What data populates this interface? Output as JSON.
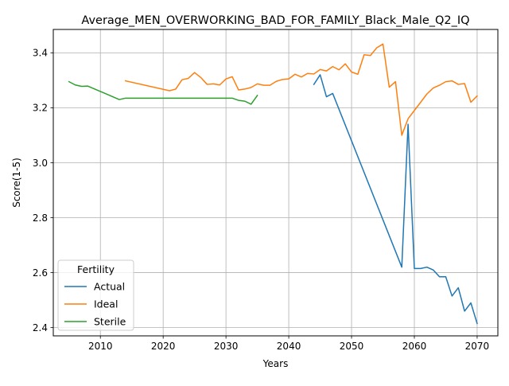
{
  "chart_data": {
    "type": "line",
    "title": "Average_MEN_OVERWORKING_BAD_FOR_FAMILY_Black_Male_Q2_IQ",
    "xlabel": "Years",
    "ylabel": "Score(1-5)",
    "xlim": [
      2002.5,
      2073.3
    ],
    "ylim": [
      2.37,
      3.485
    ],
    "xticks": [
      2010,
      2020,
      2030,
      2040,
      2050,
      2060,
      2070
    ],
    "yticks": [
      2.4,
      2.6,
      2.8,
      3.0,
      3.2,
      3.4
    ],
    "xtick_labels": [
      "2010",
      "2020",
      "2030",
      "2040",
      "2050",
      "2060",
      "2070"
    ],
    "ytick_labels": [
      "2.4",
      "2.6",
      "2.8",
      "3.0",
      "3.2",
      "3.4"
    ],
    "grid": true,
    "legend": {
      "title": "Fertility",
      "placement": "lower-left"
    },
    "series": [
      {
        "name": "Actual",
        "color": "#1f77b4",
        "x": [
          2044,
          2045,
          2046,
          2047,
          2058,
          2059,
          2060,
          2061,
          2062,
          2063,
          2064,
          2065,
          2066,
          2067,
          2068,
          2069,
          2070
        ],
        "y": [
          3.285,
          3.32,
          3.24,
          3.252,
          2.62,
          3.14,
          2.615,
          2.615,
          2.62,
          2.61,
          2.585,
          2.585,
          2.515,
          2.545,
          2.46,
          2.49,
          2.415
        ]
      },
      {
        "name": "Ideal",
        "color": "#ff7f0e",
        "x": [
          2014,
          2021,
          2022,
          2023,
          2024,
          2025,
          2026,
          2027,
          2028,
          2029,
          2030,
          2031,
          2032,
          2033,
          2034,
          2035,
          2036,
          2037,
          2038,
          2039,
          2040,
          2041,
          2042,
          2043,
          2044,
          2045,
          2046,
          2047,
          2048,
          2049,
          2050,
          2051,
          2052,
          2053,
          2054,
          2055,
          2056,
          2057,
          2058,
          2059,
          2060,
          2061,
          2062,
          2063,
          2064,
          2065,
          2066,
          2067,
          2068,
          2069,
          2070
        ],
        "y": [
          3.298,
          3.262,
          3.268,
          3.302,
          3.307,
          3.328,
          3.31,
          3.285,
          3.287,
          3.283,
          3.305,
          3.313,
          3.265,
          3.268,
          3.274,
          3.287,
          3.282,
          3.282,
          3.296,
          3.303,
          3.305,
          3.322,
          3.312,
          3.325,
          3.323,
          3.339,
          3.334,
          3.35,
          3.338,
          3.36,
          3.33,
          3.322,
          3.393,
          3.39,
          3.418,
          3.432,
          3.275,
          3.295,
          3.1,
          3.16,
          3.19,
          3.22,
          3.25,
          3.272,
          3.282,
          3.295,
          3.298,
          3.285,
          3.288,
          3.22,
          3.243
        ]
      },
      {
        "name": "Sterile",
        "color": "#2ca02c",
        "x": [
          2005,
          2006,
          2007,
          2008,
          2013,
          2014,
          2015,
          2031,
          2032,
          2033,
          2034,
          2035
        ],
        "y": [
          3.295,
          3.283,
          3.278,
          3.279,
          3.23,
          3.235,
          3.235,
          3.235,
          3.227,
          3.224,
          3.213,
          3.245
        ]
      }
    ]
  }
}
